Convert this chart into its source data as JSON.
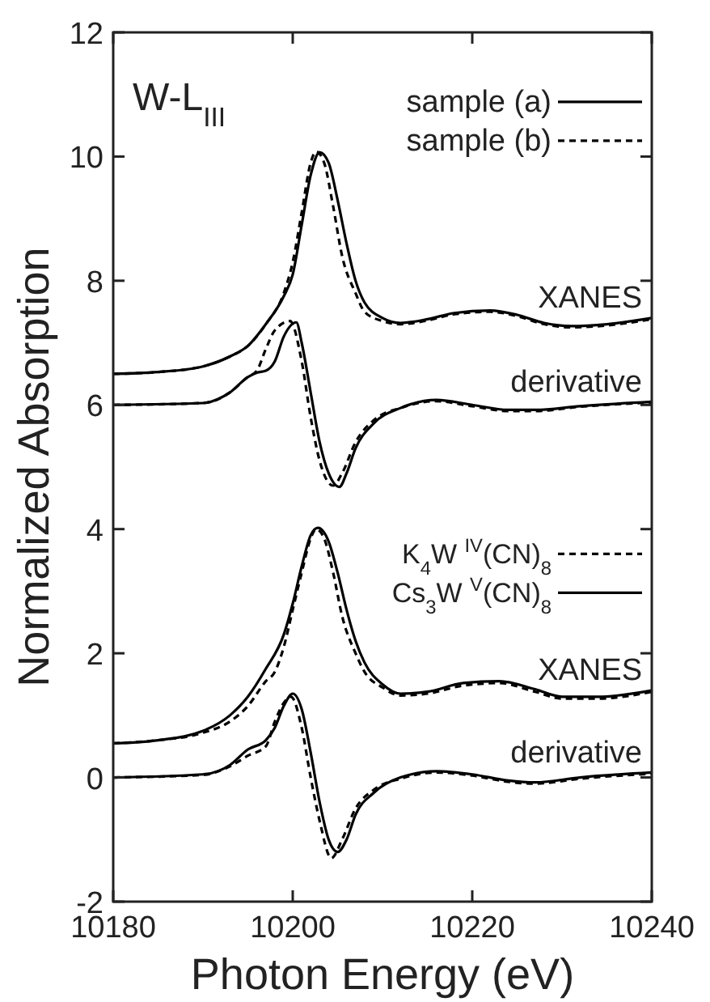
{
  "chart_data": {
    "type": "line",
    "xlabel": "Photon Energy  (eV)",
    "ylabel": "Normalized Absorption",
    "xlim": [
      10180,
      10240
    ],
    "xticks": [
      10180,
      10200,
      10220,
      10240
    ],
    "ylim": [
      -2,
      12
    ],
    "yticks": [
      -2,
      0,
      2,
      4,
      6,
      8,
      10,
      12
    ],
    "grid": false,
    "marker": "none",
    "legend": "right",
    "annotations": [
      "W-L$_{III}$",
      "XANES",
      "derivative",
      "XANES",
      "derivative"
    ],
    "series": [
      {
        "name": "sample (a)",
        "color": "#000000",
        "line_style": "solid",
        "x": [
          10180,
          10185,
          10190,
          10193,
          10195,
          10197,
          10199,
          10200,
          10201,
          10202,
          10203,
          10204,
          10205,
          10206,
          10207,
          10208,
          10210,
          10212,
          10215,
          10218,
          10222,
          10225,
          10228,
          10231,
          10235,
          10240
        ],
        "values": [
          6.5,
          6.53,
          6.62,
          6.78,
          6.95,
          7.3,
          7.75,
          8.1,
          8.9,
          9.7,
          10.07,
          9.9,
          9.3,
          8.6,
          8.0,
          7.65,
          7.4,
          7.32,
          7.38,
          7.48,
          7.52,
          7.45,
          7.32,
          7.27,
          7.3,
          7.4
        ]
      },
      {
        "name": "sample (b)",
        "color": "#000000",
        "line_style": "dashed",
        "x": [
          10180,
          10185,
          10190,
          10193,
          10195,
          10197,
          10199,
          10200,
          10201,
          10202,
          10202.6,
          10203.5,
          10204.5,
          10205.5,
          10207,
          10208,
          10210,
          10212,
          10215,
          10218,
          10222,
          10225,
          10228,
          10231,
          10235,
          10240
        ],
        "values": [
          6.5,
          6.53,
          6.62,
          6.78,
          6.95,
          7.3,
          7.8,
          8.3,
          9.1,
          9.9,
          10.08,
          9.9,
          9.2,
          8.4,
          7.8,
          7.5,
          7.35,
          7.3,
          7.36,
          7.46,
          7.5,
          7.43,
          7.3,
          7.25,
          7.28,
          7.38
        ]
      },
      {
        "color": "#000000",
        "line_style": "solid",
        "x": [
          10180,
          10190,
          10193,
          10195,
          10196,
          10197,
          10198,
          10199,
          10200.4,
          10201,
          10202,
          10203,
          10204,
          10205.2,
          10206,
          10207,
          10209,
          10212,
          10216,
          10220,
          10224,
          10227,
          10232,
          10240
        ],
        "values": [
          6.0,
          6.03,
          6.2,
          6.45,
          6.52,
          6.55,
          6.7,
          7.1,
          7.33,
          7.0,
          6.2,
          5.4,
          4.9,
          4.68,
          4.9,
          5.3,
          5.7,
          5.95,
          6.08,
          6.0,
          5.92,
          5.92,
          5.98,
          6.05
        ]
      },
      {
        "color": "#000000",
        "line_style": "dashed",
        "x": [
          10180,
          10190,
          10193,
          10195,
          10196,
          10197,
          10198,
          10199.7,
          10201,
          10202,
          10203,
          10204.5,
          10205.5,
          10207,
          10209,
          10212,
          10216,
          10220,
          10224,
          10227,
          10232,
          10240
        ],
        "values": [
          6.0,
          6.03,
          6.2,
          6.45,
          6.55,
          6.9,
          7.2,
          7.35,
          6.7,
          5.8,
          5.1,
          4.7,
          4.9,
          5.4,
          5.75,
          5.95,
          6.06,
          5.98,
          5.9,
          5.9,
          5.97,
          6.04
        ]
      },
      {
        "name": "K$_{4}$W $^{IV}$(CN)$_{8}$",
        "color": "#000000",
        "line_style": "dashed",
        "x": [
          10180,
          10185,
          10190,
          10193,
          10195,
          10197,
          10198,
          10199,
          10200,
          10201,
          10202,
          10202.6,
          10203.5,
          10204.5,
          10205.5,
          10207,
          10208,
          10210,
          10212,
          10215,
          10219,
          10223,
          10227,
          10230,
          10234,
          10240
        ],
        "values": [
          0.55,
          0.6,
          0.72,
          0.9,
          1.15,
          1.55,
          1.7,
          2.1,
          2.7,
          3.3,
          3.85,
          4.0,
          3.85,
          3.3,
          2.6,
          2.0,
          1.7,
          1.45,
          1.32,
          1.35,
          1.48,
          1.52,
          1.38,
          1.27,
          1.27,
          1.38
        ]
      },
      {
        "name": "Cs$_{3}$W $^{V}$(CN)$_{8}$",
        "color": "#000000",
        "line_style": "solid",
        "x": [
          10180,
          10185,
          10190,
          10193,
          10195,
          10197,
          10199,
          10200,
          10201,
          10202,
          10202.8,
          10204,
          10205,
          10206,
          10207,
          10208,
          10210,
          10212,
          10215,
          10219,
          10223,
          10227,
          10230,
          10234,
          10240
        ],
        "values": [
          0.55,
          0.6,
          0.75,
          1.0,
          1.3,
          1.75,
          2.3,
          2.8,
          3.4,
          3.9,
          4.02,
          3.8,
          3.3,
          2.7,
          2.2,
          1.85,
          1.5,
          1.35,
          1.38,
          1.52,
          1.55,
          1.42,
          1.3,
          1.3,
          1.4
        ]
      },
      {
        "color": "#000000",
        "line_style": "solid",
        "x": [
          10180,
          10190,
          10193,
          10195,
          10197,
          10198,
          10199,
          10200,
          10201,
          10202,
          10203,
          10204,
          10205,
          10206,
          10207,
          10209,
          10212,
          10216,
          10220,
          10224,
          10227,
          10232,
          10240
        ],
        "values": [
          0,
          0.05,
          0.2,
          0.45,
          0.6,
          0.8,
          1.15,
          1.35,
          1.1,
          0.4,
          -0.4,
          -1.0,
          -1.2,
          -1.0,
          -0.6,
          -0.25,
          0.0,
          0.1,
          0.05,
          -0.05,
          -0.08,
          0.0,
          0.08
        ]
      },
      {
        "color": "#000000",
        "line_style": "dashed",
        "x": [
          10180,
          10190,
          10193,
          10195,
          10197,
          10198,
          10199,
          10199.8,
          10201,
          10202,
          10203,
          10204.3,
          10205.5,
          10207,
          10209,
          10212,
          10216,
          10220,
          10224,
          10227,
          10232,
          10240
        ],
        "values": [
          0,
          0.04,
          0.18,
          0.35,
          0.5,
          0.9,
          1.2,
          1.3,
          0.8,
          0,
          -0.7,
          -1.3,
          -1.0,
          -0.5,
          -0.2,
          -0.02,
          0.08,
          0.03,
          -0.07,
          -0.1,
          -0.02,
          0.06
        ]
      }
    ]
  }
}
